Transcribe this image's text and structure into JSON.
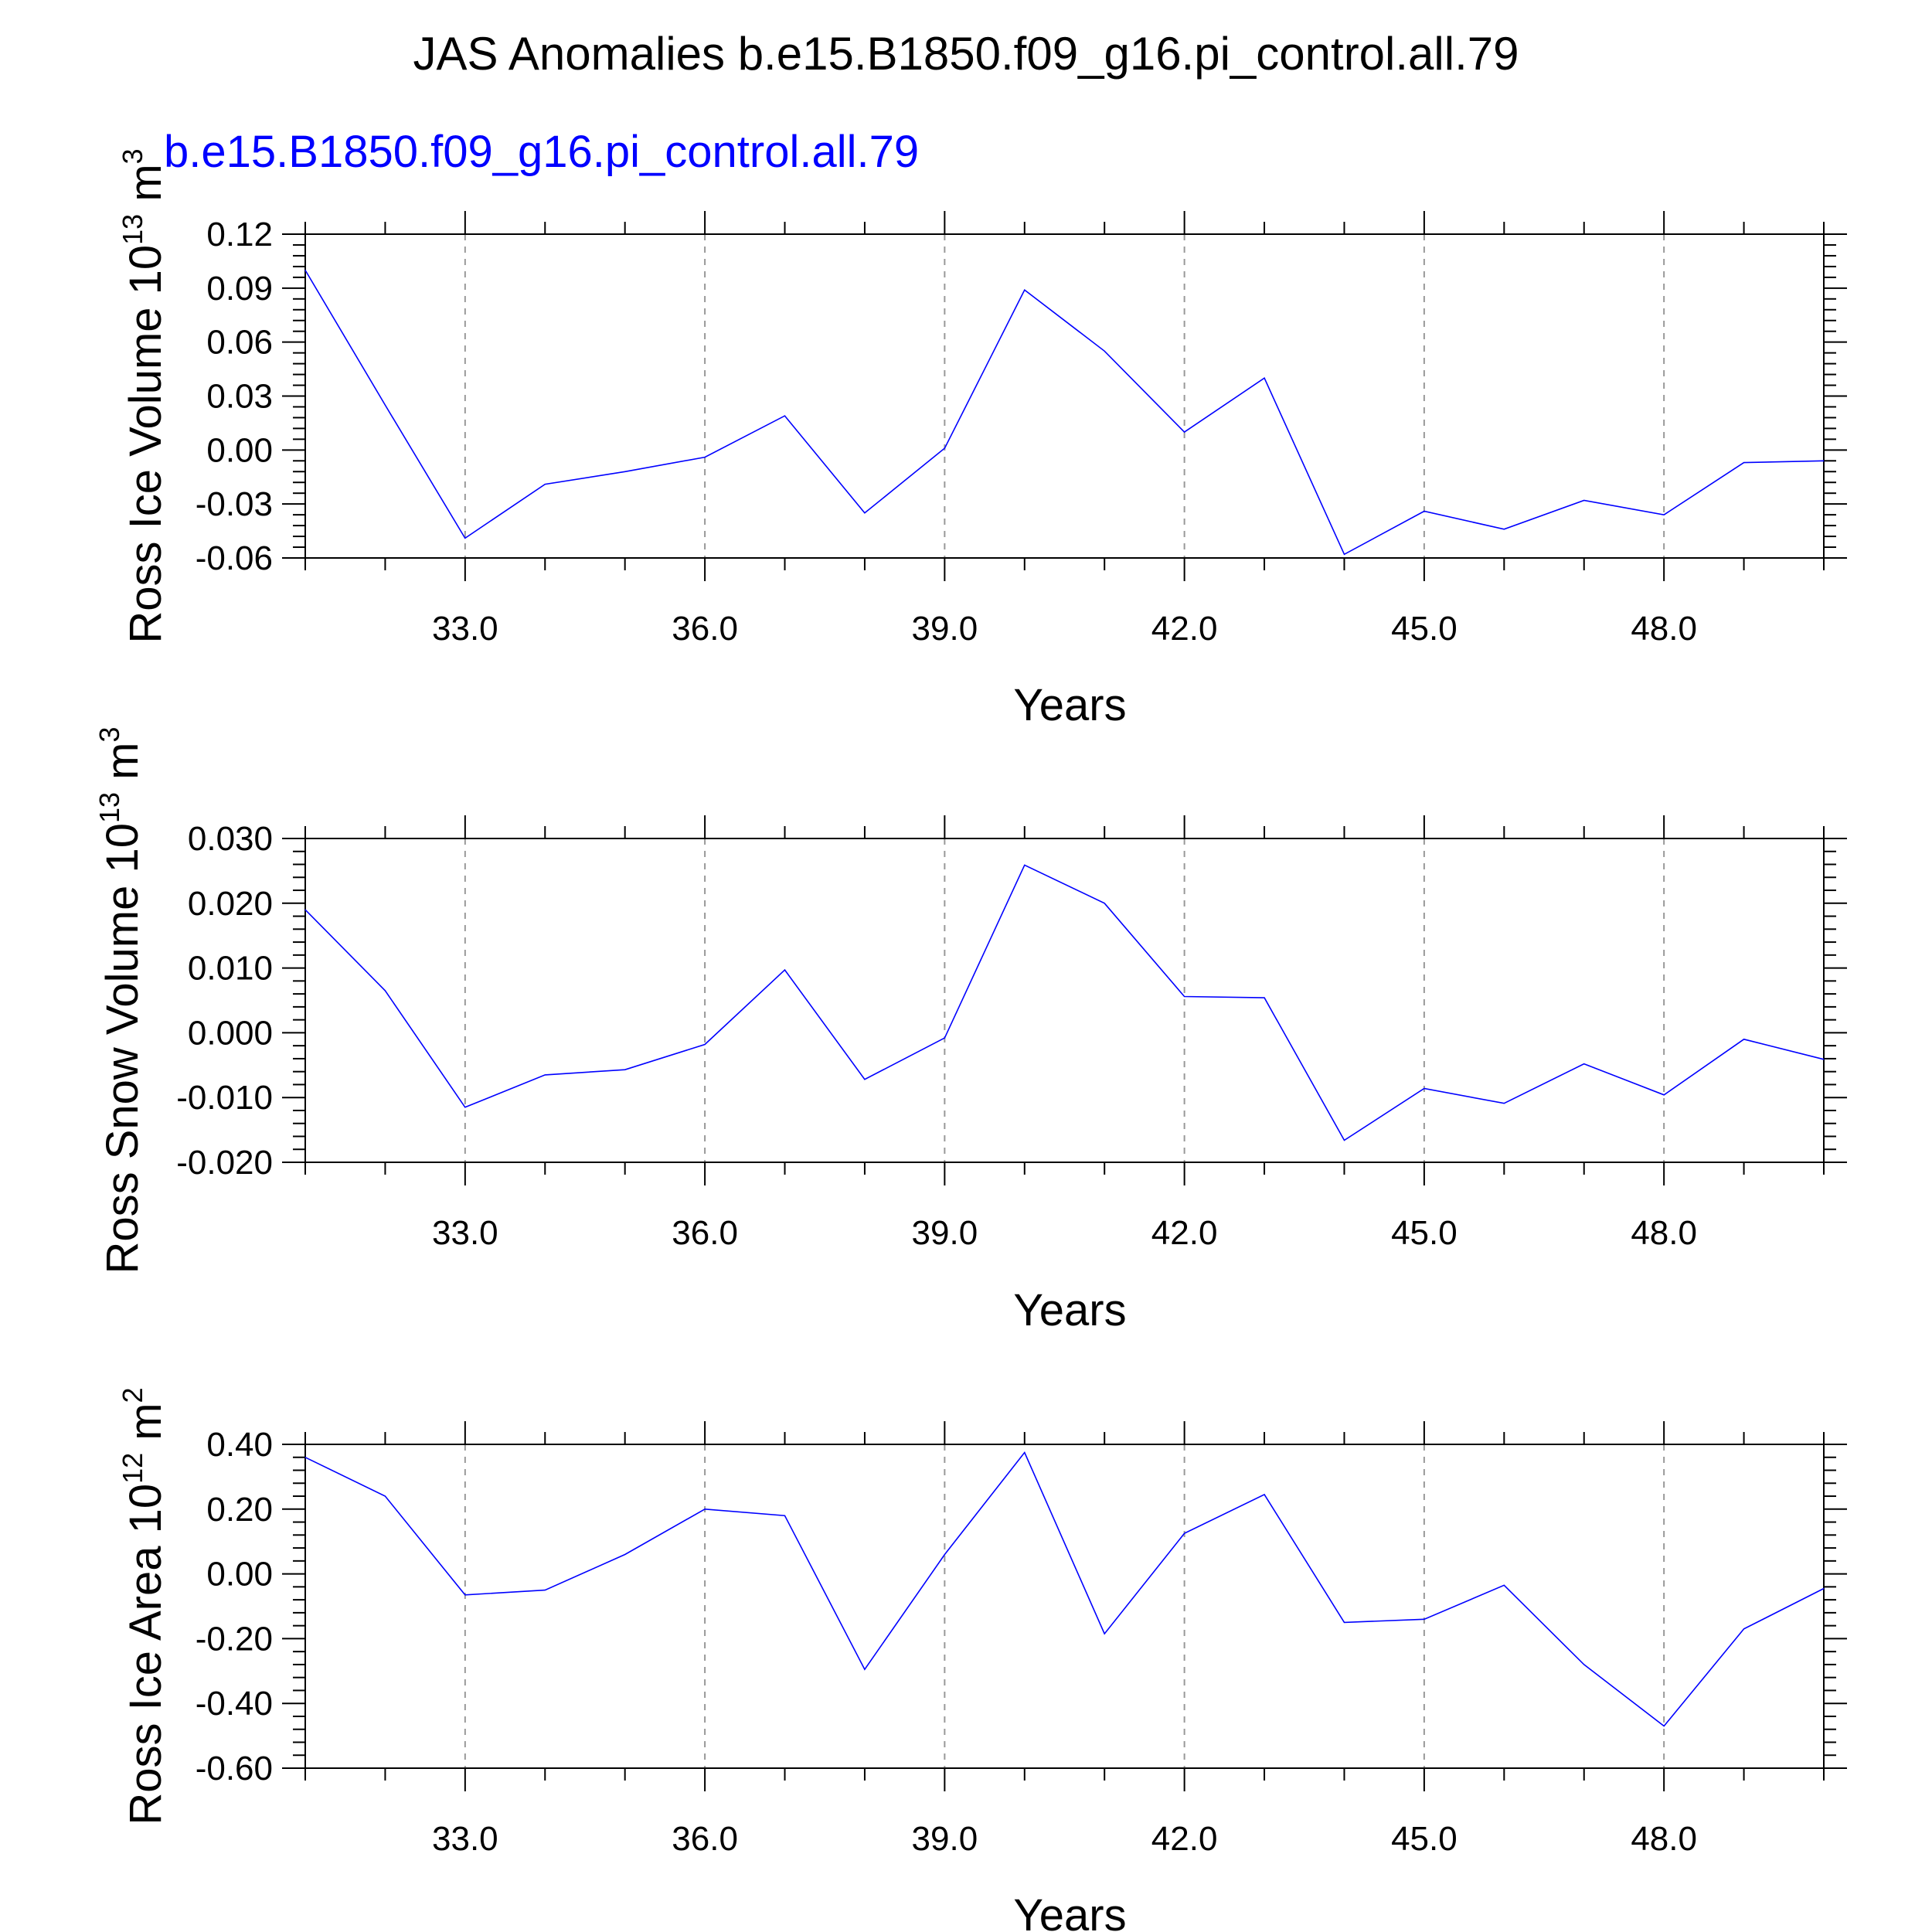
{
  "title": "JAS Anomalies b.e15.B1850.f09_g16.pi_control.all.79",
  "subtitle": "b.e15.B1850.f09_g16.pi_control.all.79",
  "colors": {
    "line": "#0000ff",
    "subtitle": "#0000ff",
    "grid": "#999999",
    "axis": "#000000"
  },
  "chart_data": [
    {
      "type": "line",
      "ylabel": {
        "text": "Ross Ice Volume 10",
        "sup": "13",
        "unit": " m",
        "unit_sup": "3"
      },
      "xlabel": "Years",
      "xlim": [
        31,
        50
      ],
      "ylim": [
        -0.06,
        0.12
      ],
      "yticks": [
        -0.06,
        -0.03,
        0.0,
        0.03,
        0.06,
        0.09,
        0.12
      ],
      "ytick_labels": [
        "-0.06",
        "-0.03",
        "0.00",
        "0.03",
        "0.06",
        "0.09",
        "0.12"
      ],
      "xticks": [
        33,
        36,
        39,
        42,
        45,
        48
      ],
      "xtick_labels": [
        "33.0",
        "36.0",
        "39.0",
        "42.0",
        "45.0",
        "48.0"
      ],
      "grid": "vertical dashed at major x ticks",
      "x": [
        31,
        32,
        33,
        34,
        35,
        36,
        37,
        38,
        39,
        40,
        41,
        42,
        43,
        44,
        45,
        46,
        47,
        48,
        49,
        50
      ],
      "values": [
        0.1,
        0.025,
        -0.049,
        -0.019,
        -0.012,
        -0.004,
        0.019,
        -0.035,
        0.001,
        0.089,
        0.055,
        0.01,
        0.04,
        -0.058,
        -0.034,
        -0.044,
        -0.028,
        -0.036,
        -0.007,
        -0.006
      ]
    },
    {
      "type": "line",
      "ylabel": {
        "text": "Ross Snow Volume 10",
        "sup": "13",
        "unit": " m",
        "unit_sup": "3"
      },
      "xlabel": "Years",
      "xlim": [
        31,
        50
      ],
      "ylim": [
        -0.02,
        0.03
      ],
      "yticks": [
        -0.02,
        -0.01,
        0.0,
        0.01,
        0.02,
        0.03
      ],
      "ytick_labels": [
        "-0.020",
        "-0.010",
        "0.000",
        "0.010",
        "0.020",
        "0.030"
      ],
      "xticks": [
        33,
        36,
        39,
        42,
        45,
        48
      ],
      "xtick_labels": [
        "33.0",
        "36.0",
        "39.0",
        "42.0",
        "45.0",
        "48.0"
      ],
      "grid": "vertical dashed at major x ticks",
      "x": [
        31,
        32,
        33,
        34,
        35,
        36,
        37,
        38,
        39,
        40,
        41,
        42,
        43,
        44,
        45,
        46,
        47,
        48,
        49,
        50
      ],
      "values": [
        0.019,
        0.0065,
        -0.0115,
        -0.0065,
        -0.0057,
        -0.0018,
        0.0097,
        -0.0072,
        -0.0008,
        0.0259,
        0.02,
        0.0056,
        0.0054,
        -0.0166,
        -0.0086,
        -0.0109,
        -0.0048,
        -0.0096,
        -0.001,
        -0.0041
      ]
    },
    {
      "type": "line",
      "ylabel": {
        "text": "Ross Ice Area 10",
        "sup": "12",
        "unit": " m",
        "unit_sup": "2"
      },
      "xlabel": "Years",
      "xlim": [
        31,
        50
      ],
      "ylim": [
        -0.6,
        0.4
      ],
      "yticks": [
        -0.6,
        -0.4,
        -0.2,
        0.0,
        0.2,
        0.4
      ],
      "ytick_labels": [
        "-0.60",
        "-0.40",
        "-0.20",
        "0.00",
        "0.20",
        "0.40"
      ],
      "xticks": [
        33,
        36,
        39,
        42,
        45,
        48
      ],
      "xtick_labels": [
        "33.0",
        "36.0",
        "39.0",
        "42.0",
        "45.0",
        "48.0"
      ],
      "grid": "vertical dashed at major x ticks",
      "x": [
        31,
        32,
        33,
        34,
        35,
        36,
        37,
        38,
        39,
        40,
        41,
        42,
        43,
        44,
        45,
        46,
        47,
        48,
        49,
        50
      ],
      "values": [
        0.36,
        0.24,
        -0.065,
        -0.05,
        0.06,
        0.2,
        0.18,
        -0.295,
        0.06,
        0.375,
        -0.185,
        0.125,
        0.245,
        -0.15,
        -0.14,
        -0.035,
        -0.28,
        -0.47,
        -0.17,
        -0.045
      ]
    }
  ]
}
